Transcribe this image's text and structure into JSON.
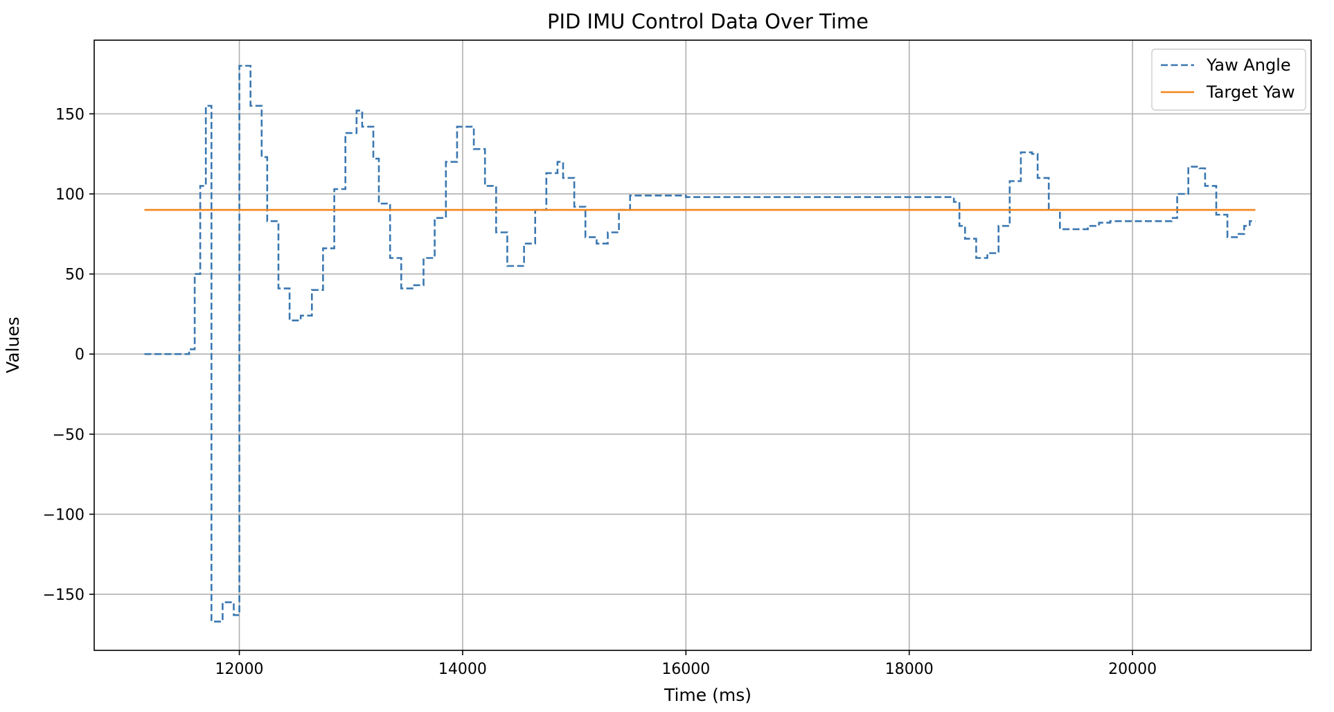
{
  "chart_data": {
    "type": "line",
    "title": "PID IMU Control Data Over Time",
    "xlabel": "Time (ms)",
    "ylabel": "Values",
    "xlim": [
      10700,
      21600
    ],
    "ylim": [
      -185,
      196
    ],
    "x_ticks": [
      12000,
      14000,
      16000,
      18000,
      20000
    ],
    "x_tick_labels": [
      "12000",
      "14000",
      "16000",
      "18000",
      "20000"
    ],
    "y_ticks": [
      -150,
      -100,
      -50,
      0,
      50,
      100,
      150
    ],
    "y_tick_labels": [
      "−150",
      "−100",
      "−50",
      "0",
      "50",
      "100",
      "150"
    ],
    "grid": true,
    "legend_position": "top-right",
    "series": [
      {
        "name": "Yaw Angle",
        "color": "#3a77b0",
        "style": "dashed",
        "step": true,
        "x": [
          11150,
          11500,
          11550,
          11600,
          11650,
          11700,
          11750,
          11800,
          11850,
          11900,
          11950,
          12000,
          12050,
          12100,
          12150,
          12200,
          12250,
          12300,
          12350,
          12400,
          12450,
          12500,
          12550,
          12600,
          12650,
          12700,
          12750,
          12800,
          12850,
          12900,
          12950,
          13000,
          13050,
          13100,
          13150,
          13200,
          13250,
          13300,
          13350,
          13400,
          13450,
          13500,
          13550,
          13600,
          13650,
          13700,
          13750,
          13800,
          13850,
          13900,
          13950,
          14000,
          14050,
          14100,
          14150,
          14200,
          14250,
          14300,
          14350,
          14400,
          14450,
          14500,
          14550,
          14600,
          14650,
          14700,
          14750,
          14800,
          14850,
          14900,
          14950,
          15000,
          15050,
          15100,
          15150,
          15200,
          15250,
          15300,
          15350,
          15400,
          15450,
          15500,
          16000,
          17000,
          18000,
          18250,
          18300,
          18350,
          18400,
          18450,
          18500,
          18550,
          18600,
          18650,
          18700,
          18750,
          18800,
          18850,
          18900,
          18950,
          19000,
          19050,
          19100,
          19150,
          19200,
          19250,
          19300,
          19350,
          19400,
          19500,
          19600,
          19700,
          19800,
          20000,
          20200,
          20300,
          20350,
          20400,
          20450,
          20500,
          20550,
          20600,
          20650,
          20700,
          20750,
          20800,
          20850,
          20900,
          20950,
          21000,
          21050,
          21100
        ],
        "values": [
          0,
          0,
          3,
          50,
          105,
          155,
          -167,
          -167,
          -155,
          -155,
          -163,
          180,
          180,
          155,
          155,
          123,
          83,
          83,
          41,
          41,
          21,
          21,
          24,
          24,
          40,
          40,
          66,
          66,
          103,
          103,
          138,
          138,
          152,
          142,
          142,
          122,
          94,
          94,
          60,
          60,
          41,
          41,
          43,
          43,
          60,
          60,
          85,
          85,
          120,
          120,
          142,
          142,
          142,
          128,
          128,
          105,
          105,
          76,
          76,
          55,
          55,
          55,
          69,
          69,
          90,
          90,
          113,
          113,
          120,
          110,
          110,
          92,
          92,
          73,
          73,
          69,
          69,
          76,
          76,
          90,
          90,
          99,
          98,
          98,
          98,
          98,
          98,
          98,
          95,
          80,
          72,
          72,
          60,
          60,
          63,
          63,
          80,
          80,
          108,
          108,
          126,
          126,
          125,
          110,
          110,
          90,
          90,
          78,
          78,
          78,
          80,
          82,
          83,
          83,
          83,
          83,
          85,
          100,
          100,
          117,
          117,
          116,
          105,
          105,
          87,
          87,
          73,
          73,
          75,
          80,
          83,
          83
        ]
      },
      {
        "name": "Target Yaw",
        "color": "#f58518",
        "style": "solid",
        "x": [
          11150,
          21100
        ],
        "values": [
          90,
          90
        ]
      }
    ]
  }
}
